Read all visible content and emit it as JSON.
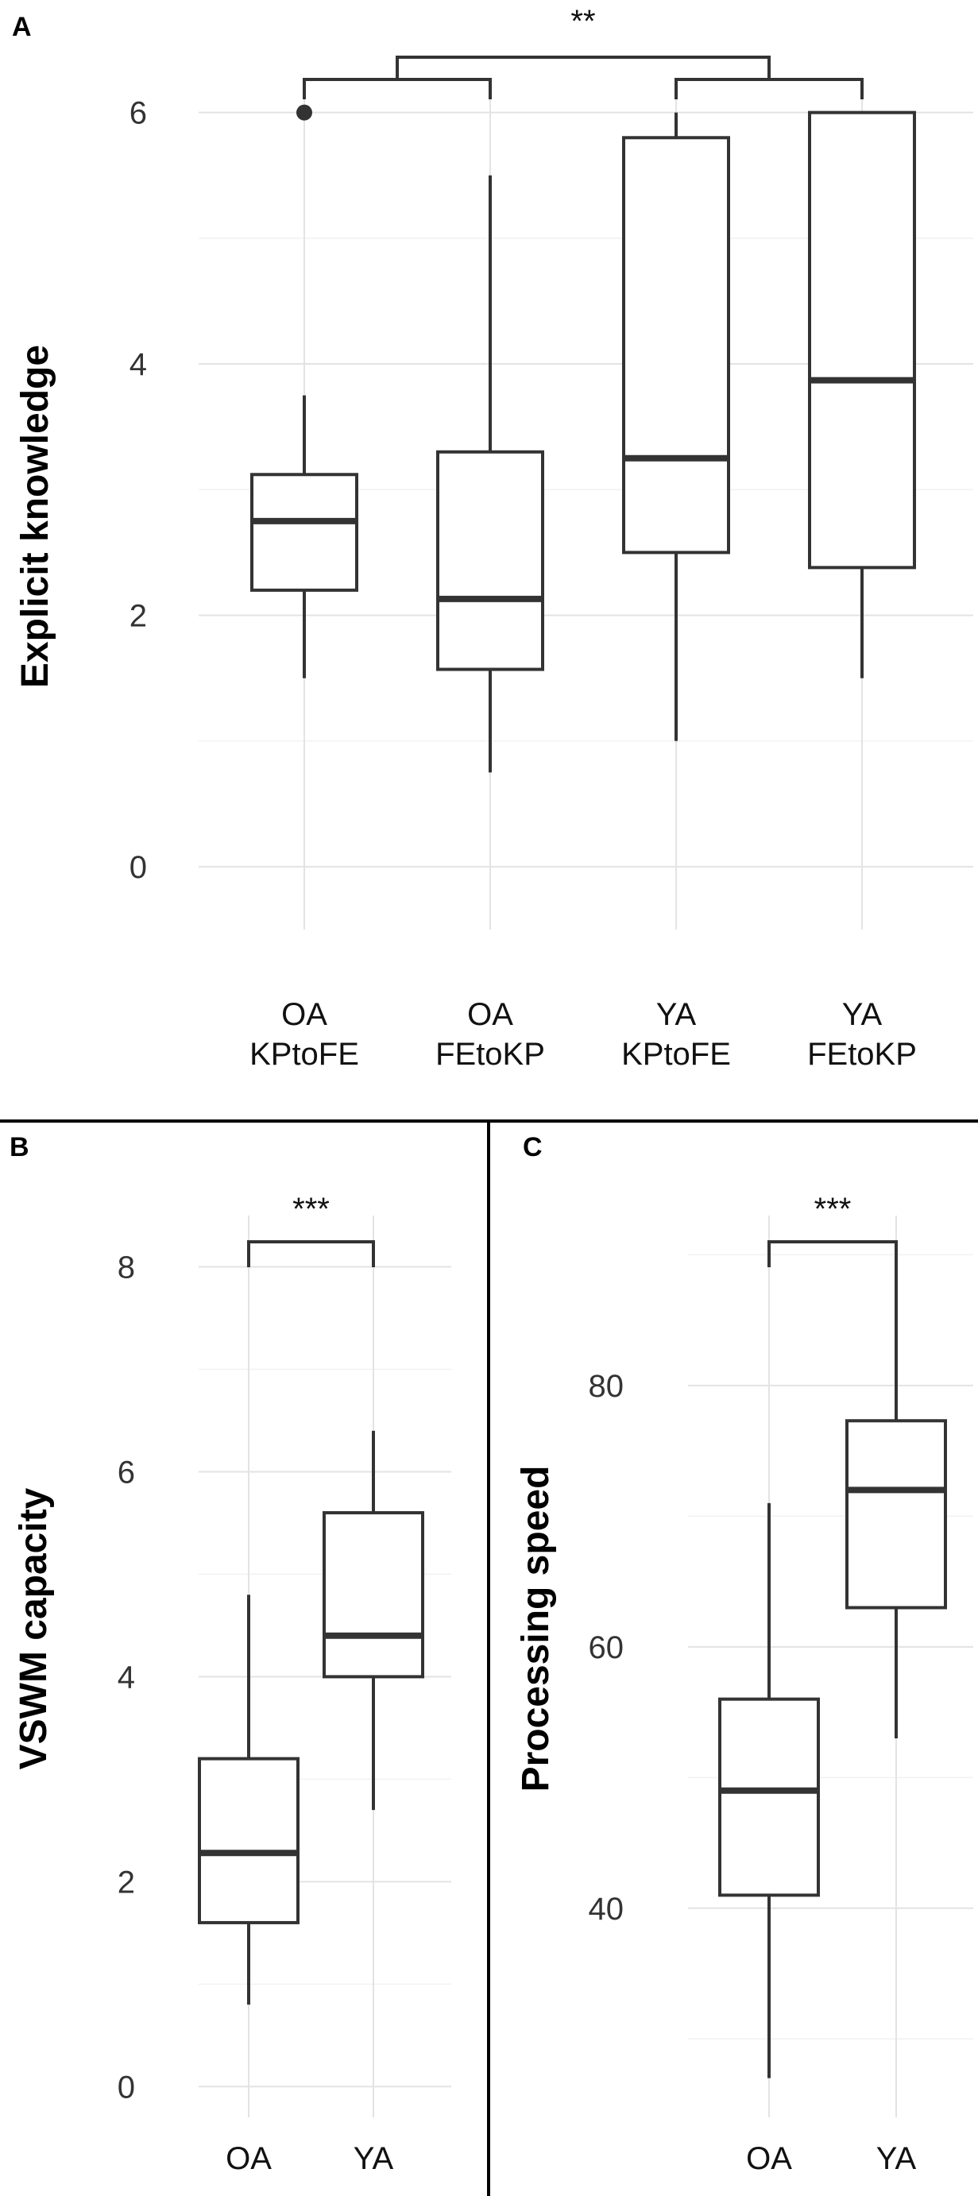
{
  "chart_data": [
    {
      "panel": "A",
      "type": "box",
      "ylabel": "Explicit knowledge",
      "ylim": [
        -0.5,
        6.2
      ],
      "yticks": [
        0,
        2,
        4,
        6
      ],
      "categories": [
        "OA\nKPtoFE",
        "OA\nFEtoKP",
        "YA\nKPtoFE",
        "YA\nFEtoKP"
      ],
      "boxes": [
        {
          "min": 1.5,
          "q1": 2.2,
          "median": 2.75,
          "q3": 3.12,
          "max": 3.75,
          "outliers": [
            6
          ]
        },
        {
          "min": 0.75,
          "q1": 1.57,
          "median": 2.13,
          "q3": 3.3,
          "max": 5.5,
          "outliers": []
        },
        {
          "min": 1.0,
          "q1": 2.5,
          "median": 3.25,
          "q3": 5.8,
          "max": 6.0,
          "outliers": []
        },
        {
          "min": 1.5,
          "q1": 2.38,
          "median": 3.87,
          "q3": 6.0,
          "max": 6.0,
          "outliers": []
        }
      ],
      "significance": [
        {
          "label": "**",
          "groups": [
            [
              0,
              1
            ],
            [
              2,
              3
            ]
          ]
        }
      ],
      "grid": true
    },
    {
      "panel": "B",
      "type": "box",
      "ylabel": "VSWM capacity",
      "ylim": [
        -0.3,
        8.5
      ],
      "yticks": [
        0,
        2,
        4,
        6,
        8
      ],
      "categories": [
        "OA",
        "YA"
      ],
      "boxes": [
        {
          "min": 0.8,
          "q1": 1.6,
          "median": 2.28,
          "q3": 3.2,
          "max": 4.8,
          "outliers": []
        },
        {
          "min": 2.7,
          "q1": 4.0,
          "median": 4.4,
          "q3": 5.6,
          "max": 6.4,
          "outliers": []
        }
      ],
      "significance": [
        {
          "label": "***",
          "groups": [
            [
              0,
              1
            ]
          ]
        }
      ],
      "grid": true
    },
    {
      "panel": "C",
      "type": "box",
      "ylabel": "Processing speed",
      "ylim": [
        24,
        93
      ],
      "yticks": [
        40,
        60,
        80
      ],
      "categories": [
        "OA",
        "YA"
      ],
      "boxes": [
        {
          "min": 27,
          "q1": 41,
          "median": 49,
          "q3": 56,
          "max": 71,
          "outliers": []
        },
        {
          "min": 53,
          "q1": 63,
          "median": 72,
          "q3": 77.3,
          "max": 91,
          "outliers": []
        }
      ],
      "significance": [
        {
          "label": "***",
          "groups": [
            [
              0,
              1
            ]
          ]
        }
      ],
      "grid": true
    }
  ]
}
